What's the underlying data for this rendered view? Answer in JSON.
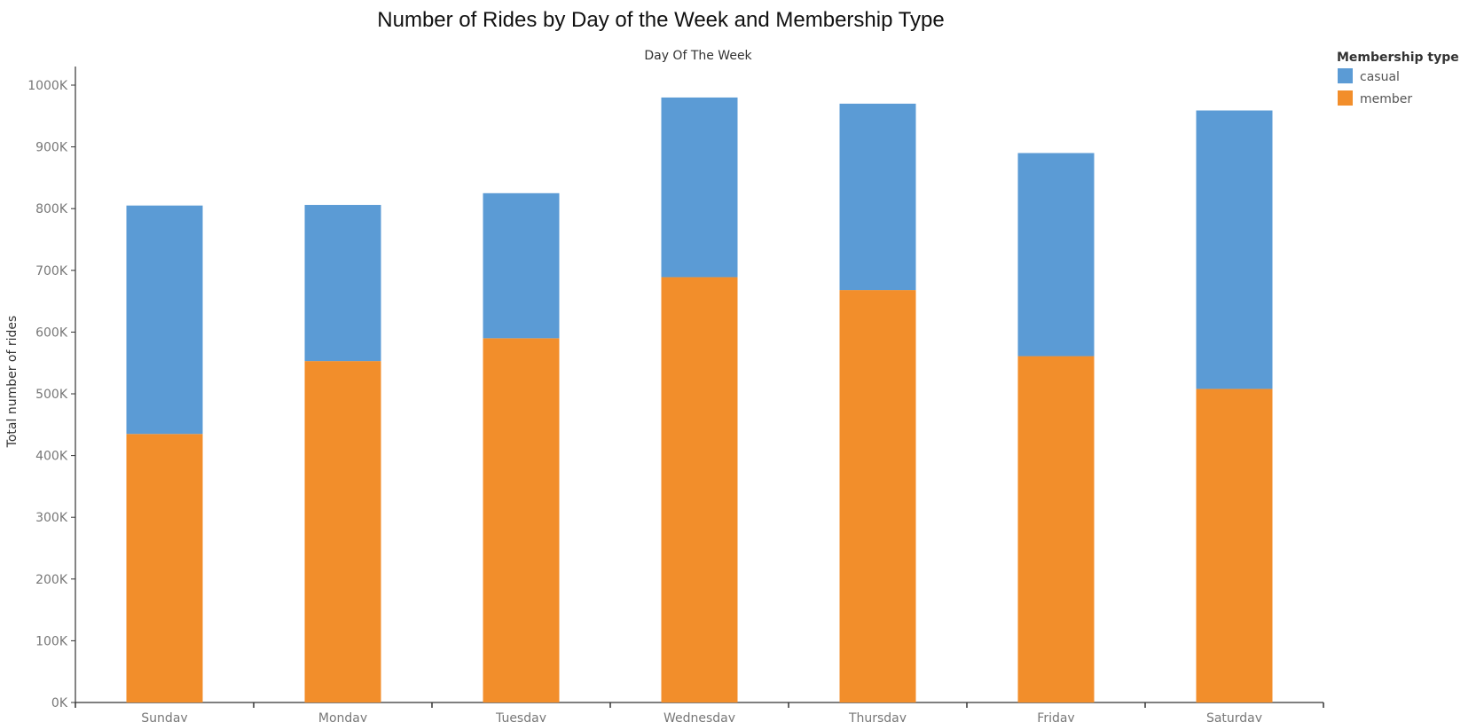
{
  "chart_data": {
    "type": "bar",
    "stacked": true,
    "title": "Number of Rides by Day of the Week and Membership Type",
    "xlabel": "Day Of The Week",
    "ylabel": "Total number of rides",
    "categories": [
      "Sunday",
      "Monday",
      "Tuesday",
      "Wednesday",
      "Thursday",
      "Friday",
      "Saturday"
    ],
    "series": [
      {
        "name": "member",
        "color": "#f28e2b",
        "values": [
          435000,
          553000,
          590000,
          689000,
          668000,
          561000,
          508000
        ]
      },
      {
        "name": "casual",
        "color": "#5b9bd5",
        "values": [
          370000,
          253000,
          235000,
          291000,
          302000,
          329000,
          451000
        ]
      }
    ],
    "ylim": [
      0,
      1000000
    ],
    "yticks": [
      0,
      100000,
      200000,
      300000,
      400000,
      500000,
      600000,
      700000,
      800000,
      900000,
      1000000
    ],
    "ytick_labels": [
      "0K",
      "100K",
      "200K",
      "300K",
      "400K",
      "500K",
      "600K",
      "700K",
      "800K",
      "900K",
      "1000K"
    ],
    "grid": false,
    "legend": {
      "title": "Membership type",
      "placement": "top-right",
      "entries": [
        {
          "label": "casual",
          "color": "#5b9bd5"
        },
        {
          "label": "member",
          "color": "#f28e2b"
        }
      ]
    }
  }
}
